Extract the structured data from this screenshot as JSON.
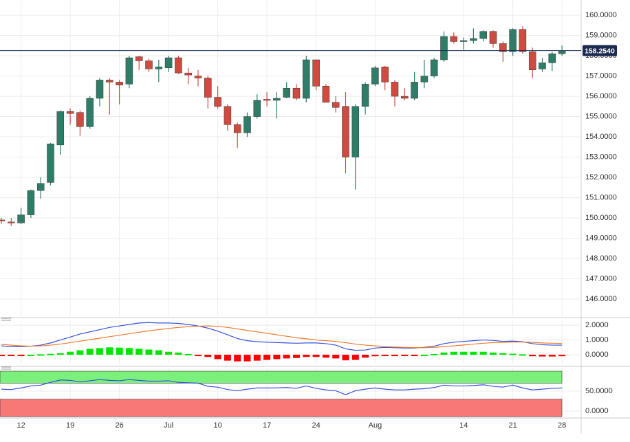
{
  "chart_data": [
    {
      "type": "candlestick",
      "up_color": "#2e7d68",
      "down_color": "#cf4a3f",
      "categories": [
        null,
        null,
        "12",
        null,
        null,
        null,
        null,
        "19",
        null,
        null,
        null,
        null,
        "26",
        null,
        null,
        null,
        null,
        "Jul",
        null,
        null,
        null,
        null,
        "10",
        null,
        null,
        null,
        null,
        "17",
        null,
        null,
        null,
        null,
        "24",
        null,
        null,
        null,
        null,
        null,
        "Aug",
        null,
        null,
        null,
        null,
        null,
        null,
        null,
        null,
        "14",
        null,
        null,
        null,
        null,
        "21",
        null,
        null,
        null,
        null,
        "28"
      ],
      "open": [
        149.9,
        149.8,
        149.75,
        150.15,
        151.35,
        151.75,
        153.6,
        155.25,
        155.2,
        154.5,
        155.9,
        156.8,
        156.7,
        156.6,
        157.95,
        157.75,
        157.35,
        157.4,
        157.9,
        157.15,
        157.0,
        156.9,
        155.95,
        155.5,
        154.6,
        154.2,
        155.0,
        155.85,
        155.8,
        155.95,
        156.4,
        155.9,
        157.8,
        156.5,
        155.7,
        155.5,
        153.0,
        155.5,
        156.6,
        157.45,
        156.7,
        156.0,
        155.9,
        156.7,
        157.0,
        157.8,
        158.95,
        158.7,
        158.75,
        158.85,
        159.2,
        158.6,
        158.2,
        159.3,
        158.2,
        157.35,
        157.65,
        158.1
      ],
      "high": [
        150.0,
        150.0,
        150.5,
        151.4,
        152.0,
        153.7,
        155.3,
        155.4,
        155.3,
        156.0,
        156.9,
        156.9,
        156.8,
        158.0,
        158.0,
        157.85,
        157.8,
        158.0,
        158.0,
        157.4,
        157.3,
        157.0,
        156.5,
        155.6,
        154.7,
        155.2,
        156.1,
        156.2,
        156.2,
        156.7,
        156.6,
        158.0,
        157.8,
        156.6,
        156.0,
        156.2,
        155.6,
        156.7,
        157.5,
        157.5,
        156.8,
        156.4,
        157.2,
        157.8,
        157.9,
        159.2,
        159.15,
        158.9,
        159.35,
        159.25,
        159.25,
        158.7,
        159.35,
        159.45,
        158.4,
        157.9,
        158.2,
        158.5
      ],
      "low": [
        149.7,
        149.6,
        149.7,
        150.0,
        150.95,
        151.6,
        153.1,
        154.6,
        154.05,
        154.4,
        155.5,
        155.1,
        155.6,
        156.4,
        157.3,
        157.2,
        156.7,
        157.2,
        157.1,
        156.6,
        156.5,
        155.4,
        155.4,
        154.3,
        153.45,
        154.0,
        154.9,
        155.5,
        154.9,
        155.9,
        155.8,
        155.7,
        156.3,
        155.7,
        155.2,
        152.2,
        151.4,
        155.1,
        156.5,
        156.3,
        155.5,
        155.8,
        155.8,
        156.4,
        156.9,
        157.7,
        158.6,
        158.3,
        158.6,
        158.7,
        158.4,
        157.7,
        158.0,
        158.1,
        156.9,
        157.2,
        157.25,
        158.0
      ],
      "close": [
        149.85,
        149.75,
        150.15,
        151.35,
        151.7,
        153.65,
        155.25,
        155.15,
        154.5,
        155.9,
        156.8,
        156.7,
        156.55,
        157.9,
        157.75,
        157.35,
        157.45,
        157.9,
        157.15,
        157.05,
        156.9,
        155.95,
        155.5,
        154.6,
        154.2,
        155.0,
        155.8,
        155.8,
        155.9,
        156.4,
        155.9,
        157.8,
        156.5,
        155.7,
        155.45,
        153.0,
        155.5,
        156.6,
        157.4,
        156.7,
        156.0,
        155.9,
        156.7,
        157.0,
        157.8,
        158.95,
        158.7,
        158.75,
        158.85,
        159.2,
        158.6,
        158.2,
        159.3,
        158.2,
        157.3,
        157.65,
        158.1,
        158.25
      ],
      "ylim": [
        145.15,
        160.75
      ],
      "yticks": [
        {
          "value": 146,
          "label": "146.0000"
        },
        {
          "value": 147,
          "label": "147.0000"
        },
        {
          "value": 148,
          "label": "148.0000"
        },
        {
          "value": 149,
          "label": "149.0000"
        },
        {
          "value": 150,
          "label": "150.0000"
        },
        {
          "value": 151,
          "label": "151.0000"
        },
        {
          "value": 152,
          "label": "152.0000"
        },
        {
          "value": 153,
          "label": "153.0000"
        },
        {
          "value": 154,
          "label": "154.0000"
        },
        {
          "value": 155,
          "label": "155.0000"
        },
        {
          "value": 156,
          "label": "156.0000"
        },
        {
          "value": 157,
          "label": "157.0000"
        },
        {
          "value": 158,
          "label": "158.0000"
        },
        {
          "value": 159,
          "label": "159.0000"
        },
        {
          "value": 160,
          "label": "160.0000"
        }
      ],
      "last_price": {
        "value": 158.254,
        "label": "158.2540"
      },
      "last_price_color": "#1c2a52"
    },
    {
      "type": "macd",
      "ylim": [
        -0.65,
        2.33
      ],
      "yticks": [
        {
          "value": 0,
          "label": "0.0000"
        },
        {
          "value": 1,
          "label": "1.0000"
        },
        {
          "value": 2,
          "label": "2.0000"
        }
      ],
      "series": [
        {
          "color": "#3552d6",
          "values": [
            0.6,
            0.55,
            0.55,
            0.58,
            0.65,
            0.8,
            1.0,
            1.2,
            1.4,
            1.55,
            1.7,
            1.85,
            1.95,
            2.05,
            2.15,
            2.18,
            2.15,
            2.15,
            2.12,
            2.05,
            1.95,
            1.8,
            1.6,
            1.35,
            1.1,
            0.95,
            0.88,
            0.85,
            0.83,
            0.8,
            0.78,
            0.8,
            0.8,
            0.75,
            0.65,
            0.4,
            0.3,
            0.32,
            0.45,
            0.5,
            0.48,
            0.45,
            0.45,
            0.5,
            0.58,
            0.75,
            0.85,
            0.9,
            0.95,
            1.0,
            0.97,
            0.9,
            0.92,
            0.88,
            0.75,
            0.68,
            0.65,
            0.65
          ]
        },
        {
          "color": "#f07a2a",
          "values": [
            0.7,
            0.65,
            0.6,
            0.58,
            0.6,
            0.65,
            0.72,
            0.82,
            0.92,
            1.02,
            1.12,
            1.22,
            1.32,
            1.42,
            1.52,
            1.62,
            1.7,
            1.78,
            1.85,
            1.9,
            1.93,
            1.95,
            1.92,
            1.85,
            1.75,
            1.65,
            1.55,
            1.45,
            1.35,
            1.25,
            1.15,
            1.08,
            1.0,
            0.95,
            0.9,
            0.82,
            0.72,
            0.65,
            0.6,
            0.55,
            0.52,
            0.5,
            0.48,
            0.48,
            0.5,
            0.55,
            0.6,
            0.66,
            0.72,
            0.78,
            0.82,
            0.84,
            0.86,
            0.86,
            0.84,
            0.8,
            0.78,
            0.76
          ]
        }
      ],
      "histogram": [
        -0.05,
        -0.05,
        -0.05,
        0.0,
        0.03,
        0.06,
        0.1,
        0.2,
        0.3,
        0.4,
        0.45,
        0.5,
        0.48,
        0.45,
        0.4,
        0.35,
        0.3,
        0.2,
        0.15,
        0.05,
        -0.05,
        -0.15,
        -0.3,
        -0.4,
        -0.45,
        -0.45,
        -0.4,
        -0.35,
        -0.3,
        -0.25,
        -0.22,
        -0.15,
        -0.15,
        -0.2,
        -0.25,
        -0.38,
        -0.35,
        -0.2,
        -0.1,
        -0.05,
        -0.05,
        -0.05,
        -0.03,
        0.0,
        0.05,
        0.15,
        0.2,
        0.2,
        0.2,
        0.2,
        0.15,
        0.1,
        0.07,
        0.03,
        -0.1,
        -0.12,
        -0.12,
        -0.1
      ],
      "histogram_up_color": "#00e600",
      "histogram_down_color": "#ff0000"
    },
    {
      "type": "rsi",
      "ylim": [
        -13.8,
        106.9
      ],
      "yticks": [
        {
          "value": 0,
          "label": "0.0000"
        },
        {
          "value": 50,
          "label": "50.0000"
        }
      ],
      "overbought": 70,
      "oversold": 30,
      "overbought_color": "#7cf07c",
      "oversold_color": "#f87878",
      "series": [
        {
          "color": "#3552d6",
          "values": [
            55,
            54,
            58,
            63,
            65,
            72,
            78,
            77,
            73,
            76,
            79,
            77,
            76,
            79,
            77,
            75,
            75,
            76,
            72,
            71,
            70,
            62,
            60,
            54,
            51,
            55,
            58,
            58,
            58,
            59,
            57,
            63,
            57,
            53,
            51,
            41,
            51,
            55,
            58,
            55,
            53,
            53,
            55,
            56,
            59,
            65,
            63,
            63,
            64,
            66,
            62,
            60,
            65,
            58,
            53,
            55,
            57,
            58
          ]
        }
      ]
    }
  ]
}
